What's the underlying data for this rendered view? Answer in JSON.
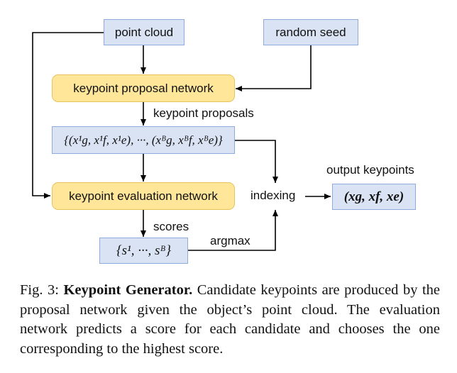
{
  "nodes": {
    "point_cloud": "point cloud",
    "random_seed": "random seed",
    "proposal_network": "keypoint proposal network",
    "evaluation_network": "keypoint evaluation network",
    "proposals_set": "{(x¹g, x¹f, x¹e), ···, (xᴮg, xᴮf, xᴮe)}",
    "scores_set": "{s¹, ···, sᴮ}",
    "output": "(xg, xf, xe)"
  },
  "labels": {
    "keypoint_proposals": "keypoint proposals",
    "scores": "scores",
    "argmax": "argmax",
    "indexing": "indexing",
    "output_keypoints": "output keypoints"
  },
  "caption": {
    "prefix": "Fig. 3:",
    "title": "Keypoint Generator.",
    "text": "Candidate keypoints are produced by the proposal network given the object’s point cloud. The evaluation network predicts a score for each candidate and chooses the one corresponding to the highest score."
  }
}
